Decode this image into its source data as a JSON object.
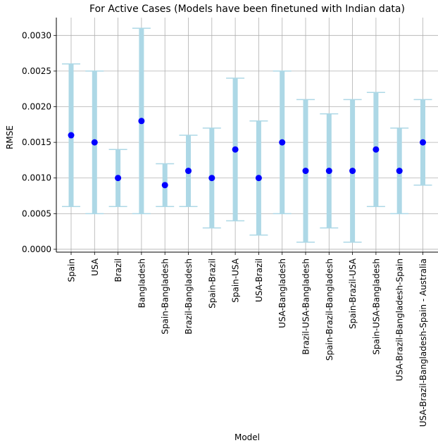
{
  "chart_data": {
    "type": "scatter",
    "title": "For Active Cases (Models have been finetuned with Indian data)",
    "xlabel": "Model",
    "ylabel": "RMSE",
    "ylim": [
      -4e-05,
      0.00325
    ],
    "yticks": [
      0.0,
      0.0005,
      0.001,
      0.0015,
      0.002,
      0.0025,
      0.003
    ],
    "ytick_labels": [
      "0.0000",
      "0.0005",
      "0.0010",
      "0.0015",
      "0.0020",
      "0.0025",
      "0.0030"
    ],
    "grid": true,
    "categories": [
      "Spain",
      "USA",
      "Brazil",
      "Bangladesh",
      "Spain-Bangladesh",
      "Brazil-Bangladesh",
      "Spain-Brazil",
      "Spain-USA",
      "USA-Brazil",
      "USA-Bangladesh",
      "Brazil-USA-Bangladesh",
      "Spain-Brazil-Bangladesh",
      "Spain-Brazil-USA",
      "Spain-USA-Bangladesh",
      "USA-Brazil-Bangladesh-Spain",
      "USA-Brazil-Bangladesh-Spain - Australia"
    ],
    "values": [
      0.0016,
      0.0015,
      0.001,
      0.0018,
      0.0009,
      0.0011,
      0.001,
      0.0014,
      0.001,
      0.0015,
      0.0011,
      0.0011,
      0.0011,
      0.0014,
      0.0011,
      0.0015
    ],
    "error_low": [
      0.0006,
      0.0005,
      0.0006,
      0.0005,
      0.0006,
      0.0006,
      0.0003,
      0.0004,
      0.0002,
      0.0005,
      0.0001,
      0.0003,
      0.0001,
      0.0006,
      0.0005,
      0.0009
    ],
    "error_high": [
      0.0026,
      0.0025,
      0.0014,
      0.0031,
      0.0012,
      0.0016,
      0.0017,
      0.0024,
      0.0018,
      0.0025,
      0.0021,
      0.0019,
      0.0021,
      0.0022,
      0.0017,
      0.0021
    ],
    "colors": {
      "point": "#0000ff",
      "errorbar": "#add8e6",
      "grid": "#b0b0b0",
      "axis": "#000000"
    }
  }
}
